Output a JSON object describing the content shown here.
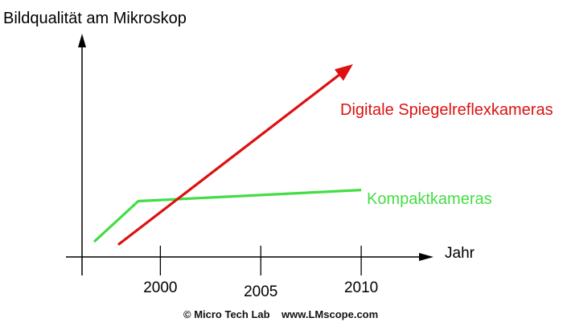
{
  "chart_data": {
    "type": "line",
    "ylabel": "Bildqualität am Mikroskop",
    "xlabel": "Jahr",
    "x_ticks": [
      2000,
      2005,
      2010
    ],
    "x_tick_labels": [
      "2000",
      "2005",
      "2010"
    ],
    "xlim": [
      1996.1,
      2013.6
    ],
    "ylim": [
      0,
      100
    ],
    "grid": false,
    "legend": "none",
    "series": [
      {
        "name": "Kompaktkameras",
        "color": "#44dd44",
        "x": [
          1996.7,
          1998.9,
          2010.0
        ],
        "y": [
          6.8,
          25.0,
          30.0
        ],
        "arrow": false
      },
      {
        "name": "Digitale Spiegelreflexkameras",
        "color": "#dd1111",
        "x": [
          1997.9,
          2009.4
        ],
        "y": [
          5.5,
          85.0
        ],
        "arrow": true
      }
    ],
    "annotations": [
      "© Micro Tech Lab    www.LMscope.com"
    ]
  }
}
